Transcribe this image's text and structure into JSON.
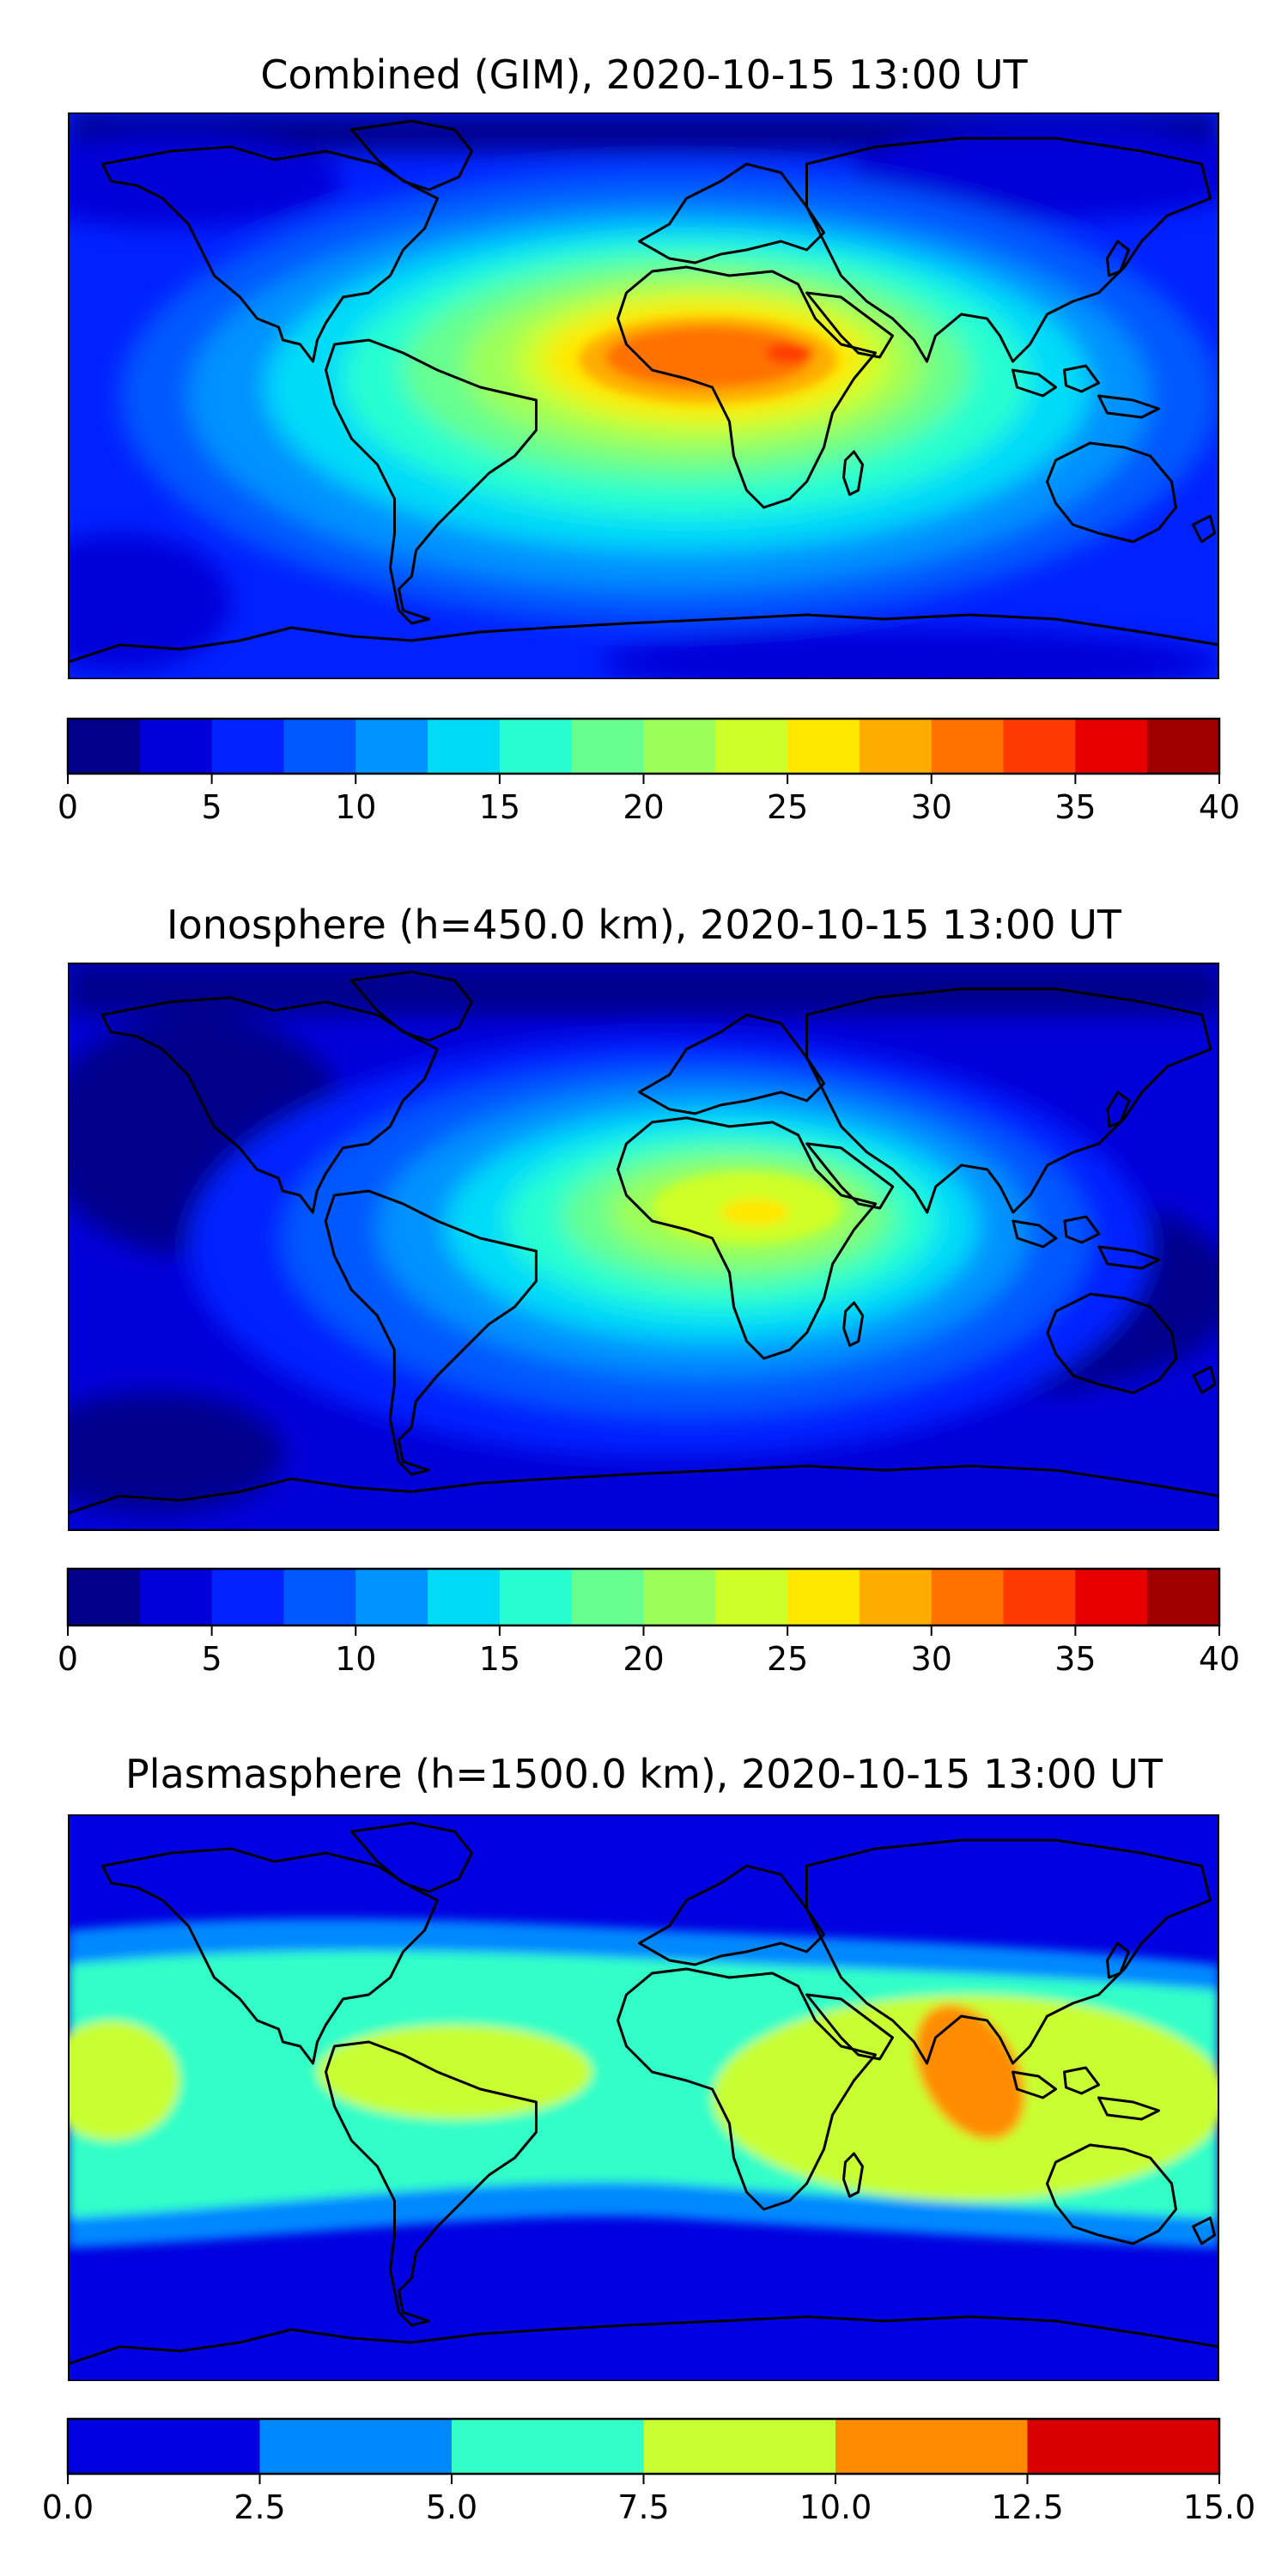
{
  "figure": {
    "panels": [
      {
        "id": "combined",
        "title": "Combined (GIM), 2020-10-15 13:00 UT",
        "colorbar": {
          "colors": [
            "#00008b",
            "#0000d8",
            "#0022ff",
            "#0058ff",
            "#0092ff",
            "#00dcf8",
            "#28ffd0",
            "#66ff90",
            "#9dff59",
            "#cfff28",
            "#ffe800",
            "#ffad00",
            "#ff7200",
            "#ff3a00",
            "#e80000",
            "#a10000"
          ],
          "ticks": [
            "0",
            "5",
            "10",
            "15",
            "20",
            "25",
            "30",
            "35",
            "40"
          ],
          "range": [
            0,
            40
          ]
        },
        "map_features": [
          {
            "name": "main-maximum-region",
            "label": "Africa / Middle East peak",
            "level_index": 12
          },
          {
            "name": "peak-core",
            "label": "East Africa core",
            "level_index": 13
          }
        ]
      },
      {
        "id": "ionosphere",
        "title": "Ionosphere  (h=450.0 km), 2020-10-15 13:00 UT",
        "colorbar": {
          "colors": [
            "#00008b",
            "#0000d8",
            "#0022ff",
            "#0058ff",
            "#0092ff",
            "#00dcf8",
            "#28ffd0",
            "#66ff90",
            "#9dff59",
            "#cfff28",
            "#ffe800",
            "#ffad00",
            "#ff7200",
            "#ff3a00",
            "#e80000",
            "#a10000"
          ],
          "ticks": [
            "0",
            "5",
            "10",
            "15",
            "20",
            "25",
            "30",
            "35",
            "40"
          ],
          "range": [
            0,
            40
          ]
        },
        "map_features": [
          {
            "name": "main-maximum-region",
            "label": "North Africa peak",
            "level_index": 10
          }
        ]
      },
      {
        "id": "plasmasphere",
        "title": "Plasmasphere (h=1500.0 km), 2020-10-15 13:00 UT",
        "colorbar": {
          "colors": [
            "#0000e0",
            "#0088ff",
            "#32ffc8",
            "#c8ff32",
            "#ff8c00",
            "#d80000"
          ],
          "ticks": [
            "0.0",
            "2.5",
            "5.0",
            "7.5",
            "10.0",
            "12.5",
            "15.0"
          ],
          "range": [
            0,
            15
          ]
        },
        "map_features": [
          {
            "name": "main-maximum-region",
            "label": "Bay of Bengal peak",
            "level_index": 4
          }
        ]
      }
    ]
  }
}
